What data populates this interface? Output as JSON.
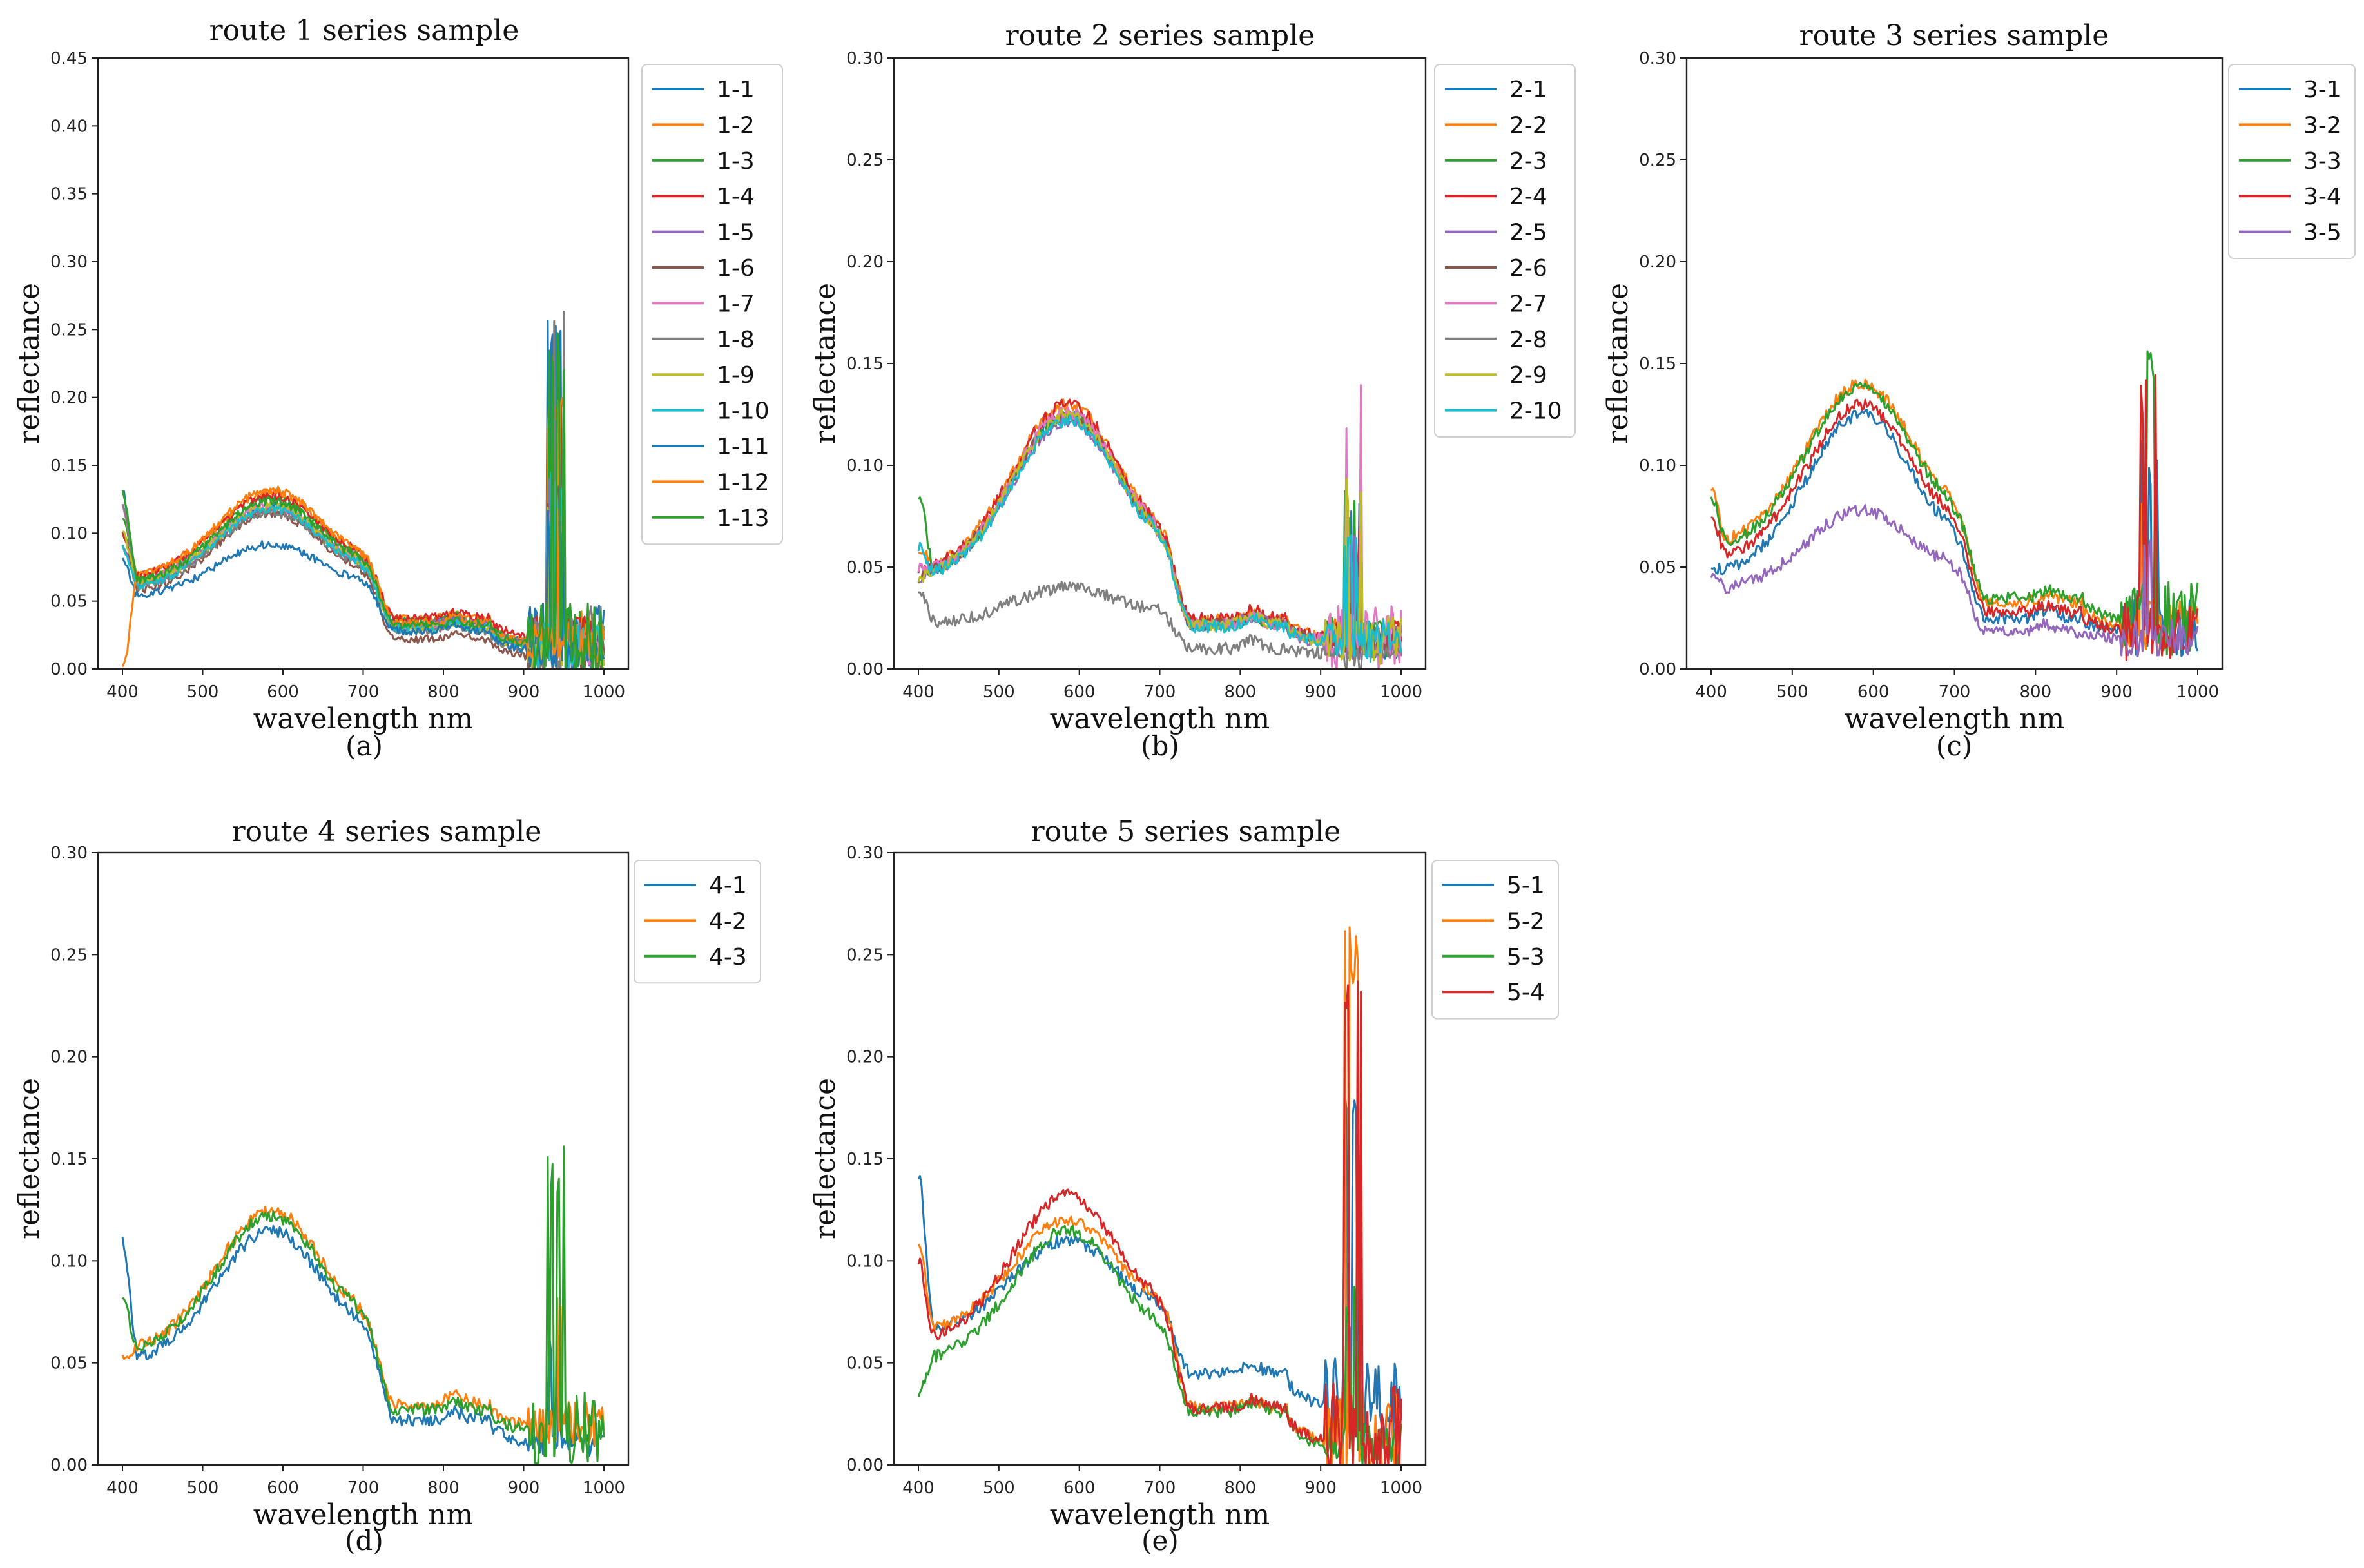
{
  "colors": {
    "blue": "#1f77b4",
    "orange": "#ff7f0e",
    "green": "#2ca02c",
    "red": "#d62728",
    "purple": "#9467bd",
    "brown": "#8c564b",
    "pink": "#e377c2",
    "gray": "#7f7f7f",
    "olive": "#bcbd22",
    "cyan": "#17becf"
  },
  "chart_data": [
    {
      "type": "line",
      "title": "route 1 series sample",
      "xlabel": "wavelength nm",
      "ylabel": "reflectance",
      "caption": "(a)",
      "xlim": [
        400,
        1000
      ],
      "ylim": [
        0,
        0.45
      ],
      "xticks": [
        "400",
        "500",
        "600",
        "700",
        "800",
        "900",
        "1000"
      ],
      "yticks": [
        "0.00",
        "0.05",
        "0.10",
        "0.15",
        "0.20",
        "0.25",
        "0.30",
        "0.35",
        "0.40",
        "0.45"
      ],
      "legend_location": "outside-upper-right",
      "series": [
        {
          "name": "1-1",
          "color": "#1f77b4",
          "start": 0.13,
          "base": 0.06,
          "peak": 0.12,
          "pv": 0.035,
          "nir": 0.02,
          "spike": 0.26
        },
        {
          "name": "1-2",
          "color": "#ff7f0e",
          "start": 0.12,
          "base": 0.065,
          "peak": 0.13,
          "pv": 0.037,
          "nir": 0.022,
          "spike": 0.2
        },
        {
          "name": "1-3",
          "color": "#2ca02c",
          "start": 0.11,
          "base": 0.062,
          "peak": 0.125,
          "pv": 0.035,
          "nir": 0.02,
          "spike": 0.26
        },
        {
          "name": "1-4",
          "color": "#d62728",
          "start": 0.1,
          "base": 0.066,
          "peak": 0.128,
          "pv": 0.038,
          "nir": 0.025,
          "spike": 0.12
        },
        {
          "name": "1-5",
          "color": "#9467bd",
          "start": 0.09,
          "base": 0.06,
          "peak": 0.118,
          "pv": 0.033,
          "nir": 0.019,
          "spike": 0.15
        },
        {
          "name": "1-6",
          "color": "#8c564b",
          "start": 0.1,
          "base": 0.055,
          "peak": 0.115,
          "pv": 0.022,
          "nir": 0.01,
          "spike": 0.14
        },
        {
          "name": "1-7",
          "color": "#e377c2",
          "start": 0.12,
          "base": 0.062,
          "peak": 0.12,
          "pv": 0.03,
          "nir": 0.018,
          "spike": 0.13
        },
        {
          "name": "1-8",
          "color": "#7f7f7f",
          "start": 0.12,
          "base": 0.058,
          "peak": 0.116,
          "pv": 0.028,
          "nir": 0.015,
          "spike": 0.27
        },
        {
          "name": "1-9",
          "color": "#bcbd22",
          "start": 0.1,
          "base": 0.06,
          "peak": 0.12,
          "pv": 0.03,
          "nir": 0.017,
          "spike": 0.14
        },
        {
          "name": "1-10",
          "color": "#17becf",
          "start": 0.09,
          "base": 0.058,
          "peak": 0.118,
          "pv": 0.03,
          "nir": 0.018,
          "spike": 0.15
        },
        {
          "name": "1-11",
          "color": "#1f77b4",
          "start": 0.08,
          "base": 0.052,
          "peak": 0.092,
          "pv": 0.028,
          "nir": 0.015,
          "spike": 0.12
        },
        {
          "name": "1-12",
          "color": "#ff7f0e",
          "start": 0.0,
          "base": 0.066,
          "peak": 0.132,
          "pv": 0.034,
          "nir": 0.02,
          "spike": 0.13
        },
        {
          "name": "1-13",
          "color": "#2ca02c",
          "start": 0.13,
          "base": 0.062,
          "peak": 0.124,
          "pv": 0.032,
          "nir": 0.019,
          "spike": 0.25
        }
      ]
    },
    {
      "type": "line",
      "title": "route 2 series sample",
      "xlabel": "wavelength nm",
      "ylabel": "reflectance",
      "caption": "(b)",
      "xlim": [
        400,
        1000
      ],
      "ylim": [
        0,
        0.3
      ],
      "xticks": [
        "400",
        "500",
        "600",
        "700",
        "800",
        "900",
        "1000"
      ],
      "yticks": [
        "0.00",
        "0.05",
        "0.10",
        "0.15",
        "0.20",
        "0.25",
        "0.30"
      ],
      "legend_location": "outside-upper-right",
      "series": [
        {
          "name": "2-1",
          "color": "#1f77b4",
          "start": 0.05,
          "base": 0.045,
          "peak": 0.125,
          "pv": 0.022,
          "nir": 0.015,
          "spike": 0.09
        },
        {
          "name": "2-2",
          "color": "#ff7f0e",
          "start": 0.06,
          "base": 0.048,
          "peak": 0.13,
          "pv": 0.024,
          "nir": 0.016,
          "spike": 0.08
        },
        {
          "name": "2-3",
          "color": "#2ca02c",
          "start": 0.086,
          "base": 0.046,
          "peak": 0.124,
          "pv": 0.022,
          "nir": 0.015,
          "spike": 0.09
        },
        {
          "name": "2-4",
          "color": "#d62728",
          "start": 0.05,
          "base": 0.047,
          "peak": 0.13,
          "pv": 0.025,
          "nir": 0.016,
          "spike": 0.07
        },
        {
          "name": "2-5",
          "color": "#9467bd",
          "start": 0.045,
          "base": 0.045,
          "peak": 0.122,
          "pv": 0.022,
          "nir": 0.013,
          "spike": 0.07
        },
        {
          "name": "2-6",
          "color": "#8c564b",
          "start": 0.045,
          "base": 0.046,
          "peak": 0.124,
          "pv": 0.022,
          "nir": 0.014,
          "spike": 0.06
        },
        {
          "name": "2-7",
          "color": "#e377c2",
          "start": 0.05,
          "base": 0.046,
          "peak": 0.126,
          "pv": 0.022,
          "nir": 0.015,
          "spike": 0.14
        },
        {
          "name": "2-8",
          "color": "#7f7f7f",
          "start": 0.04,
          "base": 0.022,
          "peak": 0.04,
          "pv": 0.01,
          "nir": 0.008,
          "spike": 0.02
        },
        {
          "name": "2-9",
          "color": "#bcbd22",
          "start": 0.045,
          "base": 0.045,
          "peak": 0.125,
          "pv": 0.022,
          "nir": 0.014,
          "spike": 0.1
        },
        {
          "name": "2-10",
          "color": "#17becf",
          "start": 0.06,
          "base": 0.044,
          "peak": 0.122,
          "pv": 0.021,
          "nir": 0.014,
          "spike": 0.09
        }
      ]
    },
    {
      "type": "line",
      "title": "route 3  series sample",
      "xlabel": "wavelength nm",
      "ylabel": "reflectance",
      "caption": "(c)",
      "xlim": [
        400,
        1000
      ],
      "ylim": [
        0,
        0.3
      ],
      "xticks": [
        "400",
        "500",
        "600",
        "700",
        "800",
        "900",
        "1000"
      ],
      "yticks": [
        "0.00",
        "0.05",
        "0.10",
        "0.15",
        "0.20",
        "0.25",
        "0.30"
      ],
      "legend_location": "outside-upper-right",
      "series": [
        {
          "name": "3-1",
          "color": "#1f77b4",
          "start": 0.05,
          "base": 0.045,
          "peak": 0.125,
          "pv": 0.025,
          "nir": 0.02,
          "spike": 0.12
        },
        {
          "name": "3-2",
          "color": "#ff7f0e",
          "start": 0.088,
          "base": 0.06,
          "peak": 0.14,
          "pv": 0.033,
          "nir": 0.022,
          "spike": 0.11
        },
        {
          "name": "3-3",
          "color": "#2ca02c",
          "start": 0.085,
          "base": 0.058,
          "peak": 0.138,
          "pv": 0.035,
          "nir": 0.025,
          "spike": 0.16
        },
        {
          "name": "3-4",
          "color": "#d62728",
          "start": 0.075,
          "base": 0.052,
          "peak": 0.13,
          "pv": 0.028,
          "nir": 0.02,
          "spike": 0.15
        },
        {
          "name": "3-5",
          "color": "#9467bd",
          "start": 0.045,
          "base": 0.038,
          "peak": 0.078,
          "pv": 0.018,
          "nir": 0.015,
          "spike": 0.08
        }
      ]
    },
    {
      "type": "line",
      "title": "route 4 series sample",
      "xlabel": "wavelength nm",
      "ylabel": "reflectance",
      "caption": "(d)",
      "xlim": [
        400,
        1000
      ],
      "ylim": [
        0,
        0.3
      ],
      "xticks": [
        "400",
        "500",
        "600",
        "700",
        "800",
        "900",
        "1000"
      ],
      "yticks": [
        "0.00",
        "0.05",
        "0.10",
        "0.15",
        "0.20",
        "0.25",
        "0.30"
      ],
      "legend_location": "outside-upper-right",
      "series": [
        {
          "name": "4-1",
          "color": "#1f77b4",
          "start": 0.11,
          "base": 0.05,
          "peak": 0.115,
          "pv": 0.022,
          "nir": 0.012,
          "spike": 0.065
        },
        {
          "name": "4-2",
          "color": "#ff7f0e",
          "start": 0.052,
          "base": 0.055,
          "peak": 0.125,
          "pv": 0.03,
          "nir": 0.02,
          "spike": 0.1
        },
        {
          "name": "4-3",
          "color": "#2ca02c",
          "start": 0.08,
          "base": 0.055,
          "peak": 0.122,
          "pv": 0.027,
          "nir": 0.018,
          "spike": 0.158
        }
      ]
    },
    {
      "type": "line",
      "title": "route 5 series sample",
      "xlabel": "wavelength nm",
      "ylabel": "reflectance",
      "caption": "(e)",
      "xlim": [
        400,
        1000
      ],
      "ylim": [
        0,
        0.3
      ],
      "xticks": [
        "400",
        "500",
        "600",
        "700",
        "800",
        "900",
        "1000"
      ],
      "yticks": [
        "0.00",
        "0.05",
        "0.10",
        "0.15",
        "0.20",
        "0.25",
        "0.30"
      ],
      "legend_location": "outside-upper-right",
      "series": [
        {
          "name": "5-1",
          "color": "#1f77b4",
          "start": 0.142,
          "base": 0.065,
          "peak": 0.11,
          "pv": 0.045,
          "nir": 0.03,
          "spike": 0.195
        },
        {
          "name": "5-2",
          "color": "#ff7f0e",
          "start": 0.11,
          "base": 0.065,
          "peak": 0.12,
          "pv": 0.028,
          "nir": 0.012,
          "spike": 0.265
        },
        {
          "name": "5-3",
          "color": "#2ca02c",
          "start": 0.035,
          "base": 0.05,
          "peak": 0.115,
          "pv": 0.026,
          "nir": 0.01,
          "spike": 0.09
        },
        {
          "name": "5-4",
          "color": "#d62728",
          "start": 0.1,
          "base": 0.06,
          "peak": 0.132,
          "pv": 0.028,
          "nir": 0.012,
          "spike": 0.242
        }
      ]
    }
  ]
}
